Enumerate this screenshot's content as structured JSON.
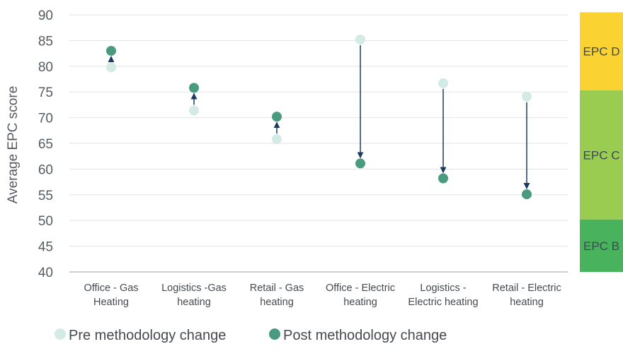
{
  "chart_data": {
    "type": "scatter",
    "title": "",
    "ylabel": "Average EPC score",
    "ylim": [
      40,
      90
    ],
    "yticks": [
      40,
      45,
      50,
      55,
      60,
      65,
      70,
      75,
      80,
      85,
      90
    ],
    "grid": true,
    "legend_position": "bottom",
    "categories": [
      [
        "Office - Gas",
        "Heating"
      ],
      [
        "Logistics -Gas",
        "heating"
      ],
      [
        "Retail - Gas",
        "heating"
      ],
      [
        "Office - Electric",
        "heating"
      ],
      [
        "Logistics -",
        "Electric heating"
      ],
      [
        "Retail - Electric",
        "heating"
      ]
    ],
    "series": [
      {
        "name": "Pre methodology change",
        "values": [
          79.8,
          71.4,
          65.8,
          85.2,
          76.7,
          74.1
        ],
        "color": "#d3ebe4"
      },
      {
        "name": "Post methodology change",
        "values": [
          83.0,
          75.8,
          70.2,
          61.1,
          58.2,
          55.1
        ],
        "color": "#4a9a80"
      }
    ],
    "arrow_color": "#1f3a5f",
    "epc_bands": [
      {
        "label": "EPC D",
        "from": 75.3,
        "to": 90.5,
        "color": "#fad231"
      },
      {
        "label": "EPC C",
        "from": 50.2,
        "to": 75.3,
        "color": "#99cc50"
      },
      {
        "label": "EPC B",
        "from": 40,
        "to": 50.2,
        "color": "#48b25c"
      }
    ]
  }
}
